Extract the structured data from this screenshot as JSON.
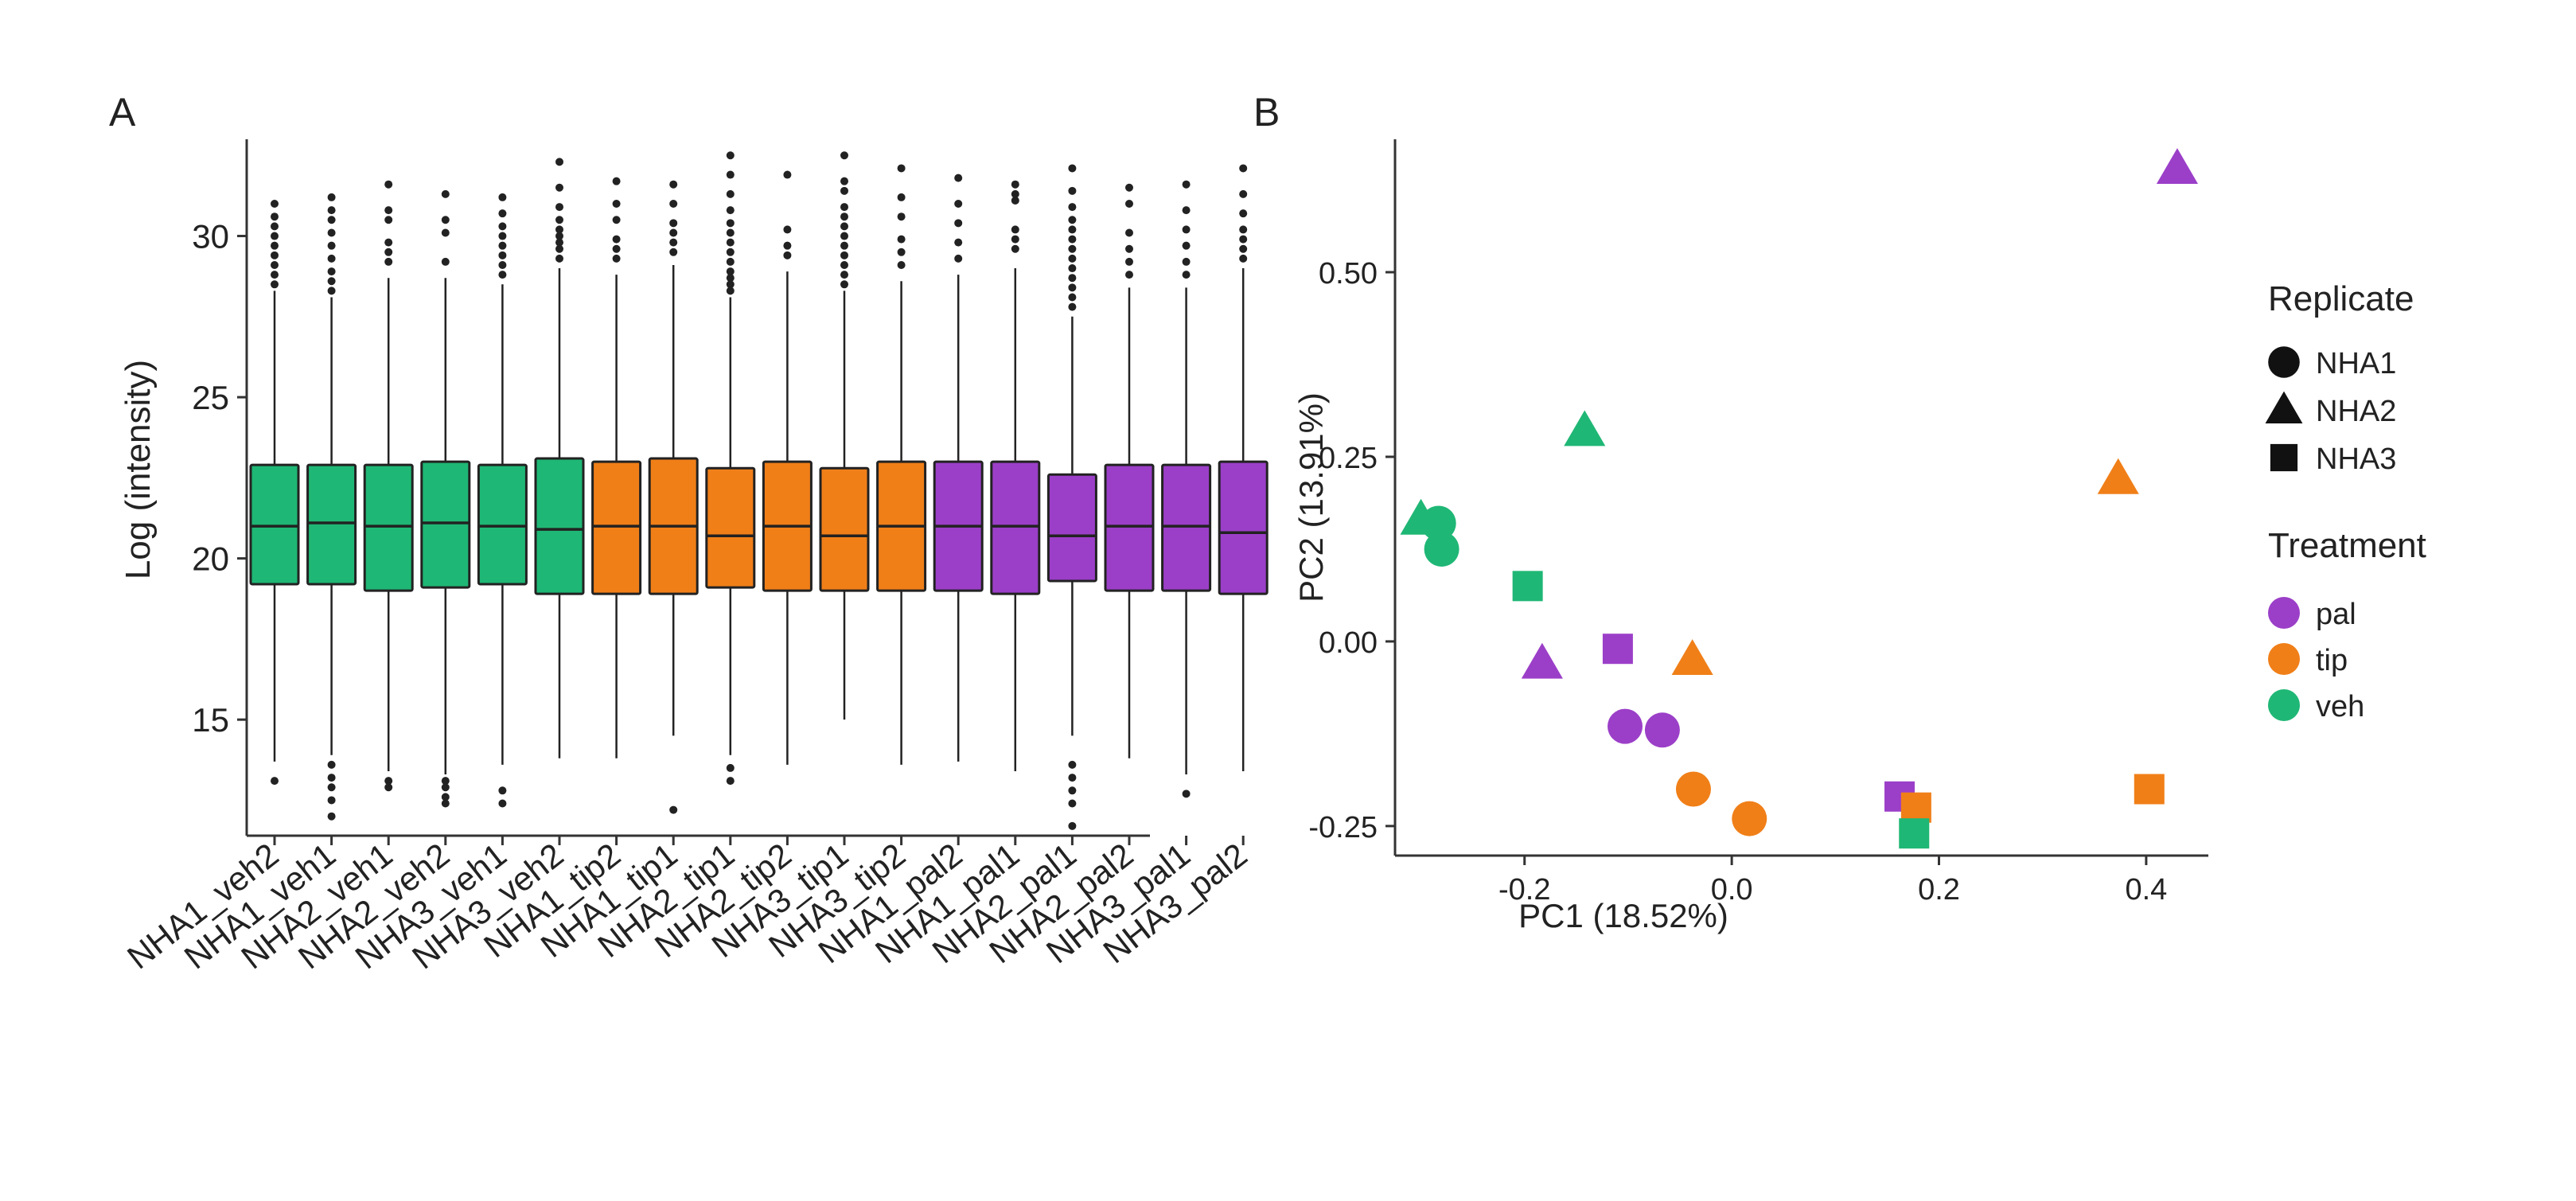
{
  "colors": {
    "pal": "#9B3FC8",
    "tip": "#F07F18",
    "veh": "#1FB775",
    "axis": "#333333",
    "outlier": "#222222"
  },
  "panels": {
    "A": "A",
    "B": "B"
  },
  "chart_data": [
    {
      "type": "box",
      "panel": "A",
      "ylabel": "Log (intensity)",
      "xlabel": "",
      "ylim": [
        11.4,
        33.0
      ],
      "yticks": [
        15,
        20,
        25,
        30
      ],
      "categories": [
        "NHA1_veh2",
        "NHA1_veh1",
        "NHA2_veh1",
        "NHA2_veh2",
        "NHA3_veh1",
        "NHA3_veh2",
        "NHA1_tip2",
        "NHA1_tip1",
        "NHA2_tip1",
        "NHA2_tip2",
        "NHA3_tip1",
        "NHA3_tip2",
        "NHA1_pal2",
        "NHA1_pal1",
        "NHA2_pal1",
        "NHA2_pal2",
        "NHA3_pal1",
        "NHA3_pal2"
      ],
      "treatment": [
        "veh",
        "veh",
        "veh",
        "veh",
        "veh",
        "veh",
        "tip",
        "tip",
        "tip",
        "tip",
        "tip",
        "tip",
        "pal",
        "pal",
        "pal",
        "pal",
        "pal",
        "pal"
      ],
      "boxes": [
        {
          "q1": 19.2,
          "median": 21.0,
          "q3": 22.9,
          "lower": 13.7,
          "upper": 28.3,
          "outliers": [
            13.1,
            28.5,
            28.8,
            29.1,
            29.4,
            29.7,
            30.0,
            30.3,
            30.6,
            31.0
          ]
        },
        {
          "q1": 19.2,
          "median": 21.1,
          "q3": 22.9,
          "lower": 13.9,
          "upper": 28.1,
          "outliers": [
            12.0,
            12.5,
            12.9,
            13.2,
            13.6,
            28.3,
            28.6,
            28.9,
            29.3,
            29.7,
            30.1,
            30.5,
            30.8,
            31.2
          ]
        },
        {
          "q1": 19.0,
          "median": 21.0,
          "q3": 22.9,
          "lower": 13.4,
          "upper": 28.7,
          "outliers": [
            12.9,
            13.1,
            29.2,
            29.5,
            29.8,
            30.5,
            30.8,
            31.6
          ]
        },
        {
          "q1": 19.1,
          "median": 21.1,
          "q3": 23.0,
          "lower": 13.3,
          "upper": 28.7,
          "outliers": [
            12.4,
            12.6,
            12.9,
            13.1,
            29.2,
            30.1,
            30.5,
            31.3
          ]
        },
        {
          "q1": 19.2,
          "median": 21.0,
          "q3": 22.9,
          "lower": 13.6,
          "upper": 28.5,
          "outliers": [
            12.4,
            12.8,
            28.8,
            29.1,
            29.4,
            29.7,
            30.0,
            30.3,
            30.7,
            31.2
          ]
        },
        {
          "q1": 18.9,
          "median": 20.9,
          "q3": 23.1,
          "lower": 13.8,
          "upper": 29.0,
          "outliers": [
            29.3,
            29.6,
            29.8,
            30.0,
            30.2,
            30.5,
            30.9,
            31.5,
            32.3
          ]
        },
        {
          "q1": 18.9,
          "median": 21.0,
          "q3": 23.0,
          "lower": 13.8,
          "upper": 28.8,
          "outliers": [
            29.3,
            29.6,
            29.9,
            30.5,
            31.0,
            31.7
          ]
        },
        {
          "q1": 18.9,
          "median": 21.0,
          "q3": 23.1,
          "lower": 14.5,
          "upper": 29.1,
          "outliers": [
            12.2,
            29.5,
            29.8,
            30.1,
            30.4,
            31.0,
            31.6
          ]
        },
        {
          "q1": 19.1,
          "median": 20.7,
          "q3": 22.8,
          "lower": 13.9,
          "upper": 28.1,
          "outliers": [
            13.1,
            13.5,
            28.3,
            28.5,
            28.7,
            28.9,
            29.2,
            29.5,
            29.8,
            30.1,
            30.4,
            30.8,
            31.3,
            31.9,
            32.5
          ]
        },
        {
          "q1": 19.0,
          "median": 21.0,
          "q3": 23.0,
          "lower": 13.6,
          "upper": 28.9,
          "outliers": [
            29.4,
            29.7,
            30.2,
            31.9
          ]
        },
        {
          "q1": 19.0,
          "median": 20.7,
          "q3": 22.8,
          "lower": 15.0,
          "upper": 28.3,
          "outliers": [
            28.5,
            28.8,
            29.1,
            29.4,
            29.7,
            30.0,
            30.3,
            30.6,
            30.9,
            31.4,
            31.7,
            32.5
          ]
        },
        {
          "q1": 19.0,
          "median": 21.0,
          "q3": 23.0,
          "lower": 13.6,
          "upper": 28.6,
          "outliers": [
            29.1,
            29.5,
            29.9,
            30.6,
            31.2,
            32.1
          ]
        },
        {
          "q1": 19.0,
          "median": 21.0,
          "q3": 23.0,
          "lower": 13.7,
          "upper": 28.8,
          "outliers": [
            29.3,
            29.8,
            30.4,
            31.0,
            31.8
          ]
        },
        {
          "q1": 18.9,
          "median": 21.0,
          "q3": 23.0,
          "lower": 13.4,
          "upper": 29.0,
          "outliers": [
            29.6,
            29.9,
            30.2,
            31.1,
            31.3,
            31.6
          ]
        },
        {
          "q1": 19.3,
          "median": 20.7,
          "q3": 22.6,
          "lower": 14.5,
          "upper": 27.5,
          "outliers": [
            11.7,
            12.4,
            12.8,
            13.2,
            13.6,
            27.8,
            28.1,
            28.4,
            28.7,
            29.0,
            29.3,
            29.6,
            29.9,
            30.2,
            30.5,
            30.9,
            31.4,
            32.1
          ]
        },
        {
          "q1": 19.0,
          "median": 21.0,
          "q3": 22.9,
          "lower": 13.8,
          "upper": 28.4,
          "outliers": [
            28.8,
            29.2,
            29.6,
            30.1,
            31.0,
            31.5
          ]
        },
        {
          "q1": 19.0,
          "median": 21.0,
          "q3": 22.9,
          "lower": 13.3,
          "upper": 28.4,
          "outliers": [
            12.7,
            28.8,
            29.2,
            29.7,
            30.2,
            30.8,
            31.6
          ]
        },
        {
          "q1": 18.9,
          "median": 20.8,
          "q3": 23.0,
          "lower": 13.4,
          "upper": 29.0,
          "outliers": [
            29.3,
            29.6,
            29.9,
            30.2,
            30.7,
            31.3,
            32.1
          ]
        }
      ]
    },
    {
      "type": "scatter",
      "panel": "B",
      "xlabel": "PC1 (18.52%)",
      "ylabel": "PC2 (13.91%)",
      "xlim": [
        -0.325,
        0.46
      ],
      "ylim": [
        -0.29,
        0.68
      ],
      "xticks": [
        -0.2,
        0.0,
        0.2,
        0.4
      ],
      "xtick_labels": [
        "-0.2",
        "0.0",
        "0.2",
        "0.4"
      ],
      "yticks": [
        -0.25,
        0.0,
        0.25,
        0.5
      ],
      "ytick_labels": [
        "-0.25",
        "0.00",
        "0.25",
        "0.50"
      ],
      "legend": {
        "shape_title": "Replicate",
        "shape_items": [
          {
            "label": "NHA1",
            "shape": "circle"
          },
          {
            "label": "NHA2",
            "shape": "triangle"
          },
          {
            "label": "NHA3",
            "shape": "square"
          }
        ],
        "color_title": "Treatment",
        "color_items": [
          {
            "label": "pal",
            "treatment": "pal"
          },
          {
            "label": "tip",
            "treatment": "tip"
          },
          {
            "label": "veh",
            "treatment": "veh"
          }
        ]
      },
      "points": [
        {
          "x": 0.43,
          "y": 0.64,
          "treatment": "pal",
          "replicate": "NHA2"
        },
        {
          "x": -0.183,
          "y": -0.03,
          "treatment": "pal",
          "replicate": "NHA2"
        },
        {
          "x": -0.11,
          "y": -0.01,
          "treatment": "pal",
          "replicate": "NHA3"
        },
        {
          "x": 0.162,
          "y": -0.21,
          "treatment": "pal",
          "replicate": "NHA3"
        },
        {
          "x": -0.103,
          "y": -0.115,
          "treatment": "pal",
          "replicate": "NHA1"
        },
        {
          "x": -0.067,
          "y": -0.12,
          "treatment": "pal",
          "replicate": "NHA1"
        },
        {
          "x": 0.373,
          "y": 0.22,
          "treatment": "tip",
          "replicate": "NHA2"
        },
        {
          "x": -0.038,
          "y": -0.025,
          "treatment": "tip",
          "replicate": "NHA2"
        },
        {
          "x": 0.403,
          "y": -0.2,
          "treatment": "tip",
          "replicate": "NHA3"
        },
        {
          "x": 0.178,
          "y": -0.225,
          "treatment": "tip",
          "replicate": "NHA3"
        },
        {
          "x": -0.037,
          "y": -0.2,
          "treatment": "tip",
          "replicate": "NHA1"
        },
        {
          "x": 0.017,
          "y": -0.24,
          "treatment": "tip",
          "replicate": "NHA1"
        },
        {
          "x": -0.142,
          "y": 0.285,
          "treatment": "veh",
          "replicate": "NHA2"
        },
        {
          "x": -0.3,
          "y": 0.165,
          "treatment": "veh",
          "replicate": "NHA2"
        },
        {
          "x": -0.283,
          "y": 0.16,
          "treatment": "veh",
          "replicate": "NHA1"
        },
        {
          "x": -0.28,
          "y": 0.125,
          "treatment": "veh",
          "replicate": "NHA1"
        },
        {
          "x": -0.197,
          "y": 0.075,
          "treatment": "veh",
          "replicate": "NHA3"
        },
        {
          "x": 0.176,
          "y": -0.26,
          "treatment": "veh",
          "replicate": "NHA3"
        }
      ]
    }
  ]
}
